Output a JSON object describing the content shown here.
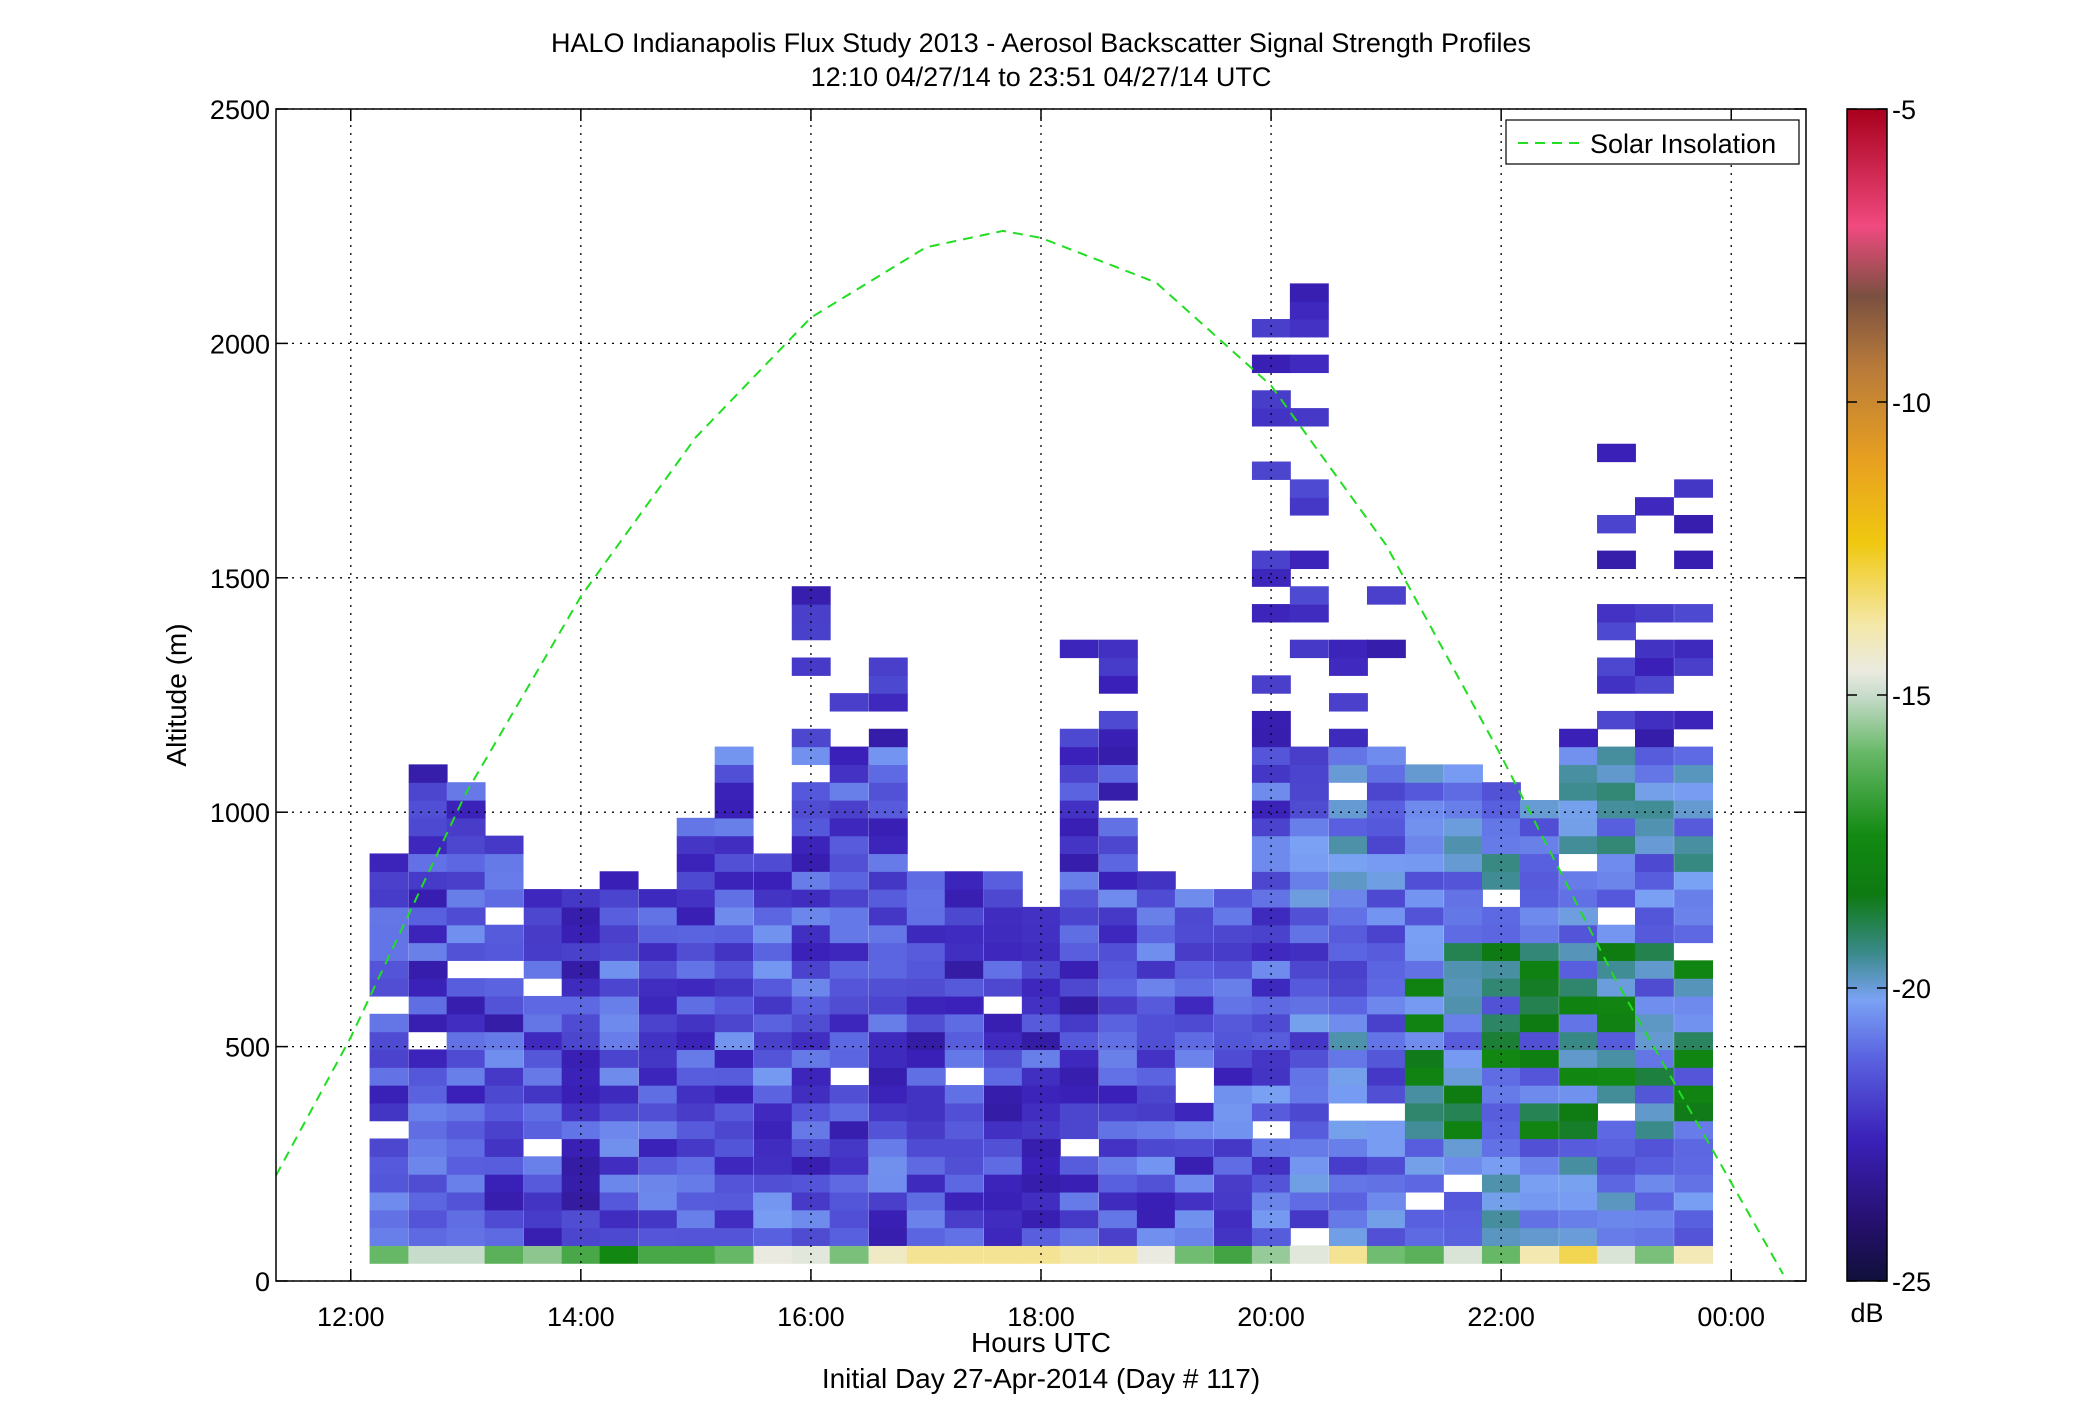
{
  "chart_data": {
    "type": "heatmap",
    "title": "HALO Indianapolis Flux Study 2013 - Aerosol Backscatter Signal Strength Profiles",
    "subtitle": "12:10 04/27/14 to 23:51 04/27/14  UTC",
    "xlabel": "Hours UTC",
    "xlabel2": "Initial Day 27-Apr-2014 (Day # 117)",
    "ylabel": "Altitude (m)",
    "xlim": [
      11.35,
      24.65
    ],
    "ylim": [
      0,
      2500
    ],
    "x_ticks": [
      12,
      14,
      16,
      18,
      20,
      22,
      24
    ],
    "x_tick_labels": [
      "12:00",
      "14:00",
      "16:00",
      "18:00",
      "20:00",
      "22:00",
      "00:00"
    ],
    "y_ticks": [
      0,
      500,
      1000,
      1500,
      2000,
      2500
    ],
    "y_tick_labels": [
      "0",
      "500",
      "1000",
      "1500",
      "2000",
      "2500"
    ],
    "grid": true,
    "legend": {
      "position": "top-right",
      "entries": [
        "Solar Insolation"
      ]
    },
    "colorbar": {
      "label": "dB",
      "range": [
        -25,
        -5
      ],
      "ticks": [
        -5,
        -10,
        -15,
        -20,
        -25
      ],
      "tick_labels": [
        "-5",
        "-10",
        "-15",
        "-20",
        "-25"
      ]
    },
    "profile_time_step_hours": 0.333,
    "altitude_bin_m": 38,
    "profiles_start_hour": 12.17,
    "profiles": [
      {
        "hour": 12.33,
        "top_m": 920,
        "mean_db": -21.5,
        "surface_db": -16.0
      },
      {
        "hour": 12.67,
        "top_m": 1110,
        "mean_db": -21.8,
        "surface_db": -15.0
      },
      {
        "hour": 13.0,
        "top_m": 1070,
        "mean_db": -21.6,
        "surface_db": -15.0
      },
      {
        "hour": 13.33,
        "top_m": 960,
        "mean_db": -21.7,
        "surface_db": -16.2
      },
      {
        "hour": 13.67,
        "top_m": 850,
        "mean_db": -21.8,
        "surface_db": -15.6
      },
      {
        "hour": 14.0,
        "top_m": 850,
        "mean_db": -21.9,
        "surface_db": -16.5
      },
      {
        "hour": 14.33,
        "top_m": 880,
        "mean_db": -21.6,
        "surface_db": -17.5
      },
      {
        "hour": 14.67,
        "top_m": 850,
        "mean_db": -21.8,
        "surface_db": -16.5
      },
      {
        "hour": 15.0,
        "top_m": 990,
        "mean_db": -21.6,
        "surface_db": -16.5
      },
      {
        "hour": 15.33,
        "top_m": 1180,
        "mean_db": -21.5,
        "surface_db": -16.0
      },
      {
        "hour": 15.67,
        "top_m": 920,
        "mean_db": -21.4,
        "surface_db": -14.6
      },
      {
        "hour": 16.0,
        "top_m": 1530,
        "mean_db": -21.6,
        "surface_db": -14.7
      },
      {
        "hour": 16.33,
        "top_m": 1340,
        "mean_db": -21.7,
        "surface_db": -15.8
      },
      {
        "hour": 16.67,
        "top_m": 1410,
        "mean_db": -21.6,
        "surface_db": -14.2
      },
      {
        "hour": 17.0,
        "top_m": 880,
        "mean_db": -21.8,
        "surface_db": -13.6
      },
      {
        "hour": 17.33,
        "top_m": 880,
        "mean_db": -21.9,
        "surface_db": -13.6
      },
      {
        "hour": 17.67,
        "top_m": 880,
        "mean_db": -22.0,
        "surface_db": -13.6
      },
      {
        "hour": 18.0,
        "top_m": 810,
        "mean_db": -21.9,
        "surface_db": -13.6
      },
      {
        "hour": 18.33,
        "top_m": 1380,
        "mean_db": -21.8,
        "surface_db": -13.8
      },
      {
        "hour": 18.67,
        "top_m": 1380,
        "mean_db": -21.7,
        "surface_db": -13.8
      },
      {
        "hour": 19.0,
        "top_m": 880,
        "mean_db": -21.6,
        "surface_db": -14.6
      },
      {
        "hour": 19.33,
        "top_m": 850,
        "mean_db": -21.6,
        "surface_db": -15.9
      },
      {
        "hour": 19.67,
        "top_m": 850,
        "mean_db": -21.5,
        "surface_db": -16.6
      },
      {
        "hour": 20.0,
        "top_m": 2110,
        "mean_db": -21.4,
        "surface_db": -15.5
      },
      {
        "hour": 20.33,
        "top_m": 2190,
        "mean_db": -21.1,
        "surface_db": -14.7
      },
      {
        "hour": 20.67,
        "top_m": 1500,
        "mean_db": -20.8,
        "surface_db": -13.6
      },
      {
        "hour": 21.0,
        "top_m": 1530,
        "mean_db": -20.9,
        "surface_db": -15.9
      },
      {
        "hour": 21.33,
        "top_m": 1110,
        "mean_db": -20.7,
        "surface_db": -16.2
      },
      {
        "hour": 21.67,
        "top_m": 1110,
        "mean_db": -20.5,
        "surface_db": -14.8
      },
      {
        "hour": 22.0,
        "top_m": 1070,
        "mean_db": -20.4,
        "surface_db": -16.0
      },
      {
        "hour": 22.33,
        "top_m": 1040,
        "mean_db": -20.5,
        "surface_db": -13.9
      },
      {
        "hour": 22.67,
        "top_m": 1160,
        "mean_db": -20.3,
        "surface_db": -13.0
      },
      {
        "hour": 23.0,
        "top_m": 1800,
        "mean_db": -20.4,
        "surface_db": -14.8
      },
      {
        "hour": 23.33,
        "top_m": 1690,
        "mean_db": -20.6,
        "surface_db": -15.8
      },
      {
        "hour": 23.67,
        "top_m": 1760,
        "mean_db": -20.5,
        "surface_db": -14.0
      }
    ],
    "series": [
      {
        "name": "Solar Insolation",
        "style": "dashed",
        "color": "#22dd22",
        "x": [
          11.35,
          12.0,
          13.0,
          14.0,
          15.0,
          16.0,
          17.0,
          17.67,
          18.0,
          19.0,
          20.0,
          21.0,
          22.0,
          23.0,
          24.0,
          24.45
        ],
        "y": [
          225,
          520,
          1040,
          1460,
          1800,
          2055,
          2205,
          2240,
          2225,
          2130,
          1910,
          1570,
          1120,
          640,
          210,
          15
        ]
      }
    ]
  }
}
